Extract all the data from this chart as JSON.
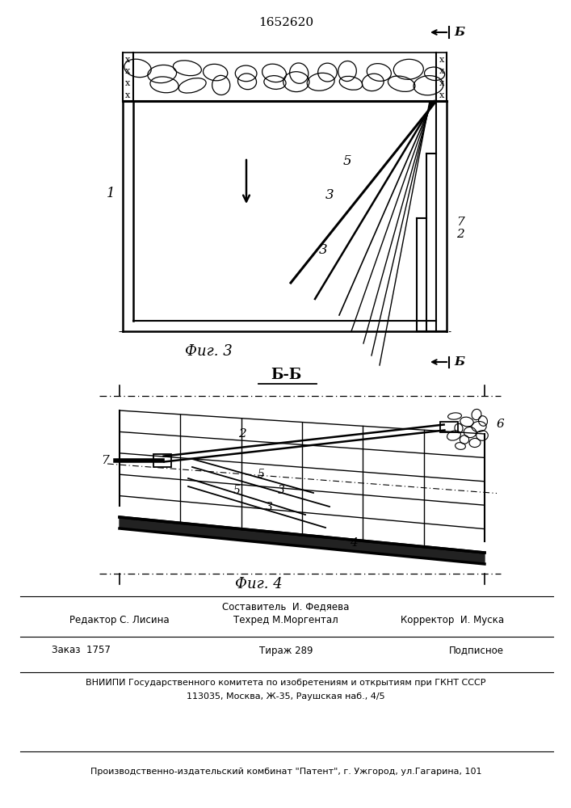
{
  "title": "1652620",
  "bg_color": "#ffffff",
  "line_color": "#000000",
  "fig3_caption": "Фиг. 3",
  "fig4_caption": "Фиг. 4",
  "section_label": "Б-Б",
  "b_label": "Б",
  "footer1": "Составитель  И. Федяева",
  "footer2a": "Редактор С. Лисина",
  "footer2b": "Техред М.Моргентал",
  "footer2c": "Корректор  И. Муска",
  "footer3a": "Заказ  1757",
  "footer3b": "Тираж 289",
  "footer3c": "Подписное",
  "footer4": "ВНИИПИ Государственного комитета по изобретениям и открытиям при ГКНТ СССР",
  "footer5": "113035, Москва, Ж-35, Раушская наб., 4/5",
  "footer6": "Производственно-издательский комбинат \"Патент\", г. Ужгород, ул.Гагарина, 101"
}
